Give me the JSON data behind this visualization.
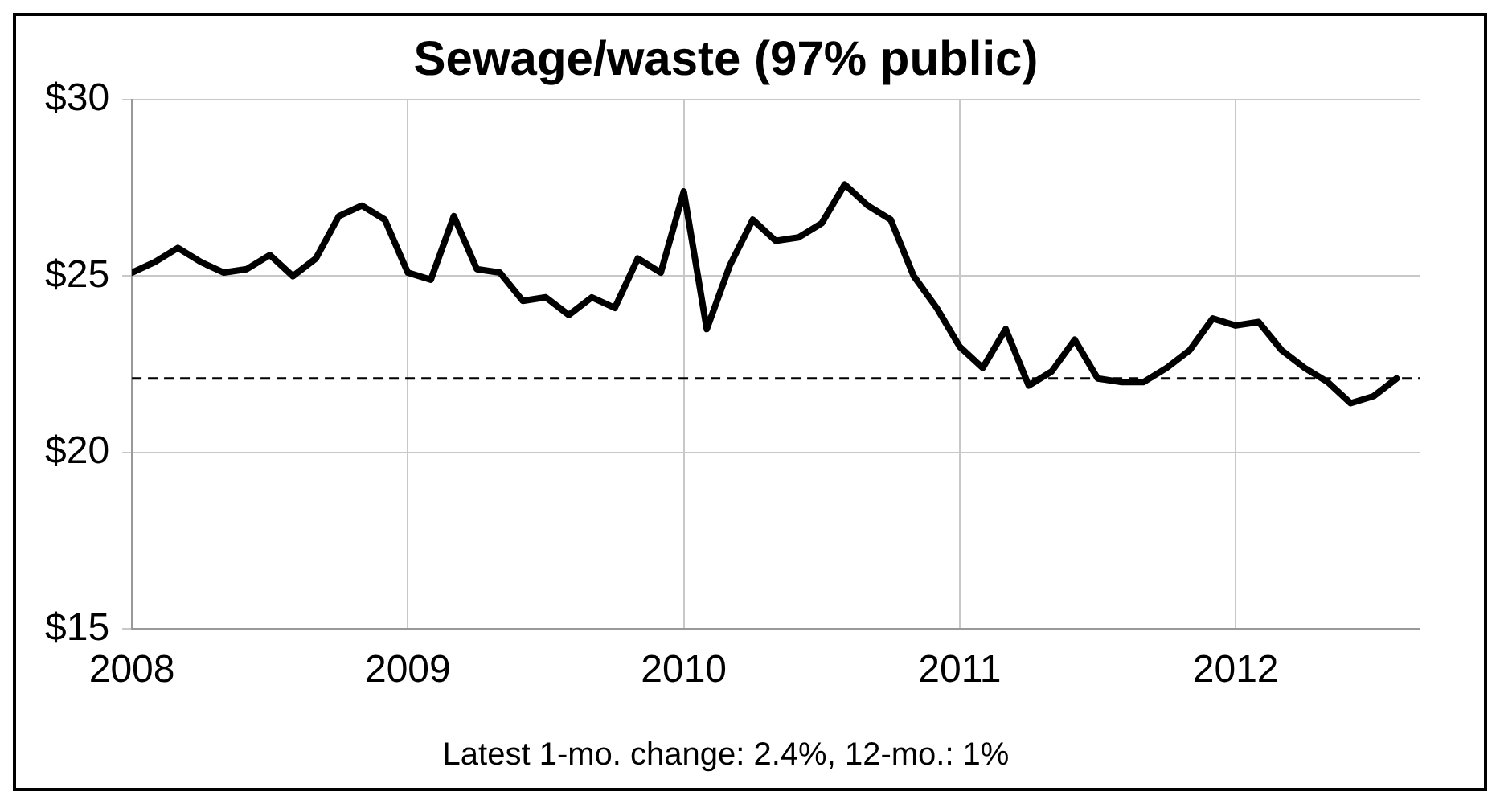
{
  "chart_data": {
    "type": "line",
    "title": "Sewage/waste (97% public)",
    "x": [
      "2008-01",
      "2008-02",
      "2008-03",
      "2008-04",
      "2008-05",
      "2008-06",
      "2008-07",
      "2008-08",
      "2008-09",
      "2008-10",
      "2008-11",
      "2008-12",
      "2009-01",
      "2009-02",
      "2009-03",
      "2009-04",
      "2009-05",
      "2009-06",
      "2009-07",
      "2009-08",
      "2009-09",
      "2009-10",
      "2009-11",
      "2009-12",
      "2010-01",
      "2010-02",
      "2010-03",
      "2010-04",
      "2010-05",
      "2010-06",
      "2010-07",
      "2010-08",
      "2010-09",
      "2010-10",
      "2010-11",
      "2010-12",
      "2011-01",
      "2011-02",
      "2011-03",
      "2011-04",
      "2011-05",
      "2011-06",
      "2011-07",
      "2011-08",
      "2011-09",
      "2011-10",
      "2011-11",
      "2011-12",
      "2012-01",
      "2012-02",
      "2012-03",
      "2012-04",
      "2012-05",
      "2012-06",
      "2012-07",
      "2012-08"
    ],
    "series": [
      {
        "color": "#000000",
        "values": [
          25.1,
          25.4,
          25.8,
          25.4,
          25.1,
          25.2,
          25.6,
          25.0,
          25.5,
          26.7,
          27.0,
          26.6,
          25.1,
          24.9,
          26.7,
          25.2,
          25.1,
          24.3,
          24.4,
          23.9,
          24.4,
          24.1,
          25.5,
          25.1,
          27.4,
          23.5,
          25.3,
          26.6,
          26.0,
          26.1,
          26.5,
          27.6,
          27.0,
          26.6,
          25.0,
          24.1,
          23.0,
          22.4,
          23.5,
          21.9,
          22.3,
          23.2,
          22.1,
          22.0,
          22.0,
          22.4,
          22.9,
          23.8,
          23.6,
          23.7,
          22.9,
          22.4,
          22.0,
          21.4,
          21.6,
          22.1
        ]
      }
    ],
    "xlim": [
      "2008-01",
      "2012-09"
    ],
    "xticks": [
      {
        "value": "2008-01",
        "label": "2008"
      },
      {
        "value": "2009-01",
        "label": "2009"
      },
      {
        "value": "2010-01",
        "label": "2010"
      },
      {
        "value": "2011-01",
        "label": "2011"
      },
      {
        "value": "2012-01",
        "label": "2012"
      }
    ],
    "ylim": [
      15,
      30
    ],
    "yticks": [
      {
        "value": 15,
        "label": "$15"
      },
      {
        "value": 20,
        "label": "$20"
      },
      {
        "value": 25,
        "label": "$25"
      },
      {
        "value": 30,
        "label": "$30"
      }
    ],
    "grid": true,
    "legend": false,
    "marker": "none",
    "line_style": "solid",
    "ref_lines": [
      {
        "axis": "y",
        "value": 22.1,
        "color": "#000000",
        "line_style": "dashed"
      }
    ],
    "annotations": [
      "Latest 1-mo. change: 2.4%, 12-mo.: 1%"
    ]
  }
}
